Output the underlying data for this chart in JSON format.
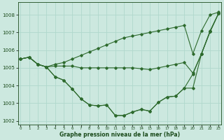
{
  "title": "Graphe pression niveau de la mer (hPa)",
  "hours": [
    0,
    1,
    2,
    3,
    4,
    5,
    6,
    7,
    8,
    9,
    10,
    11,
    12,
    13,
    14,
    15,
    16,
    17,
    18,
    19,
    20,
    21,
    22,
    23
  ],
  "ylim": [
    1001.8,
    1008.7
  ],
  "yticks": [
    1002,
    1003,
    1004,
    1005,
    1006,
    1007,
    1008
  ],
  "background_color": "#cce8df",
  "grid_color": "#b0d8cc",
  "line_color": "#2d6a2d",
  "series": {
    "line_flat": [
      1005.5,
      1005.6,
      1005.2,
      1005.05,
      1005.1,
      1005.1,
      1005.1,
      1005.0,
      1005.0,
      1005.0,
      1005.0,
      1005.0,
      1005.0,
      1005.0,
      1004.95,
      1004.9,
      1005.0,
      1005.1,
      1005.2,
      1005.3,
      1004.7,
      1005.8,
      1007.1,
      1008.1
    ],
    "line_top": [
      1005.5,
      1005.6,
      1005.2,
      1005.05,
      1005.2,
      1005.3,
      1005.5,
      1005.7,
      1005.9,
      1006.1,
      1006.3,
      1006.5,
      1006.7,
      1006.8,
      1006.9,
      1007.0,
      1007.1,
      1007.2,
      1007.3,
      1007.4,
      1005.8,
      1007.1,
      1008.0,
      1008.15
    ],
    "line_low1": [
      1005.5,
      1005.6,
      1005.2,
      1005.05,
      1004.5,
      1004.3,
      1003.8,
      1003.25,
      1002.9,
      1002.85,
      1002.9,
      1002.3,
      1002.3,
      1002.5,
      1002.65,
      1002.55,
      1003.05,
      1003.35,
      1003.4,
      1003.85,
      1003.85,
      1005.8,
      1007.05,
      1008.1
    ],
    "line_low2": [
      1005.5,
      1005.6,
      1005.2,
      1005.05,
      1004.5,
      1004.3,
      1003.8,
      1003.25,
      1002.9,
      1002.85,
      1002.9,
      1002.3,
      1002.3,
      1002.5,
      1002.65,
      1002.55,
      1003.05,
      1003.35,
      1003.4,
      1003.85,
      1004.65,
      1005.8,
      1007.05,
      1008.1
    ]
  }
}
